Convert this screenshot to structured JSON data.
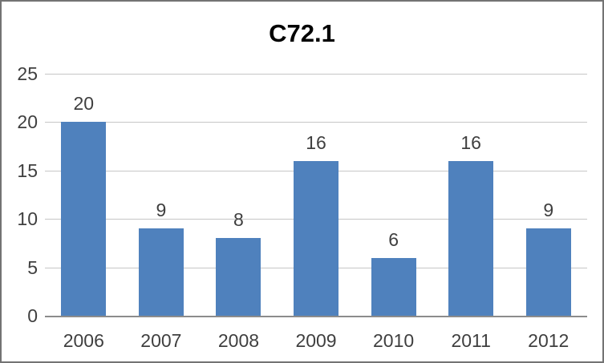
{
  "chart_data": {
    "type": "bar",
    "title": "C72.1",
    "categories": [
      "2006",
      "2007",
      "2008",
      "2009",
      "2010",
      "2011",
      "2012"
    ],
    "values": [
      20,
      9,
      8,
      16,
      6,
      16,
      9
    ],
    "xlabel": "",
    "ylabel": "",
    "ylim": [
      0,
      25
    ],
    "y_ticks": [
      0,
      5,
      10,
      15,
      20,
      25
    ],
    "data_labels": true,
    "legend": "none",
    "grid": "horizontal",
    "colors": {
      "bar": "#4F81BD",
      "gridline": "#C6C6C6",
      "axis_line": "#8C8C8C",
      "text": "#3F3F3F",
      "title_text": "#000000",
      "frame_border": "#737373",
      "background": "#FFFFFF"
    }
  }
}
